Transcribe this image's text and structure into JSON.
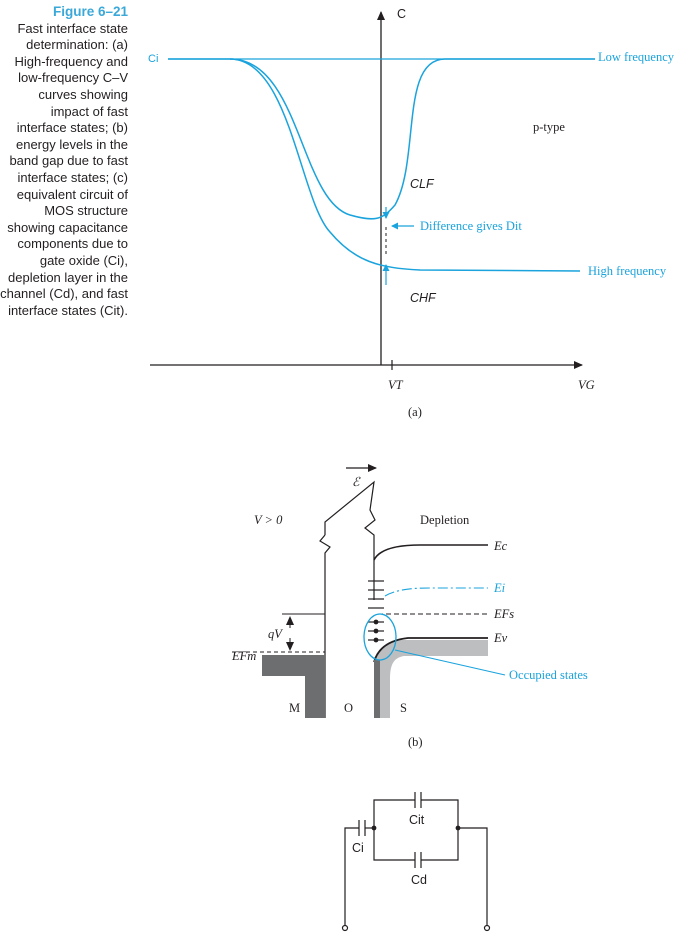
{
  "caption": {
    "title": "Figure 6–21",
    "text": "Fast interface state determination: (a) High-frequency and low-frequency C–V curves showing impact of fast interface states; (b) energy levels in the band gap due to fast interface states; (c) equivalent circuit of MOS structure showing capacitance components due to gate oxide (Ci), depletion layer in the channel (Cd), and fast interface states (Cit)."
  },
  "panel_a": {
    "y_axis": "C",
    "ci_label": "Ci",
    "low_freq": "Low frequency",
    "high_freq": "High frequency",
    "doping": "p-type",
    "clf": "CLF",
    "chf": "CHF",
    "difference": "Difference gives Dit",
    "vt": "VT",
    "vg": "VG",
    "tag": "(a)"
  },
  "panel_b": {
    "field": "ℰ",
    "bias": "V > 0",
    "depletion": "Depletion",
    "ec": "Ec",
    "ei": "Ei",
    "efs": "EFs",
    "ev": "Ev",
    "efm": "EFm",
    "qv": "qV",
    "occupied": "Occupied states",
    "m": "M",
    "o": "O",
    "s": "S",
    "tag": "(b)"
  },
  "panel_c": {
    "cit": "Cit",
    "ci": "Ci",
    "cd": "Cd"
  }
}
